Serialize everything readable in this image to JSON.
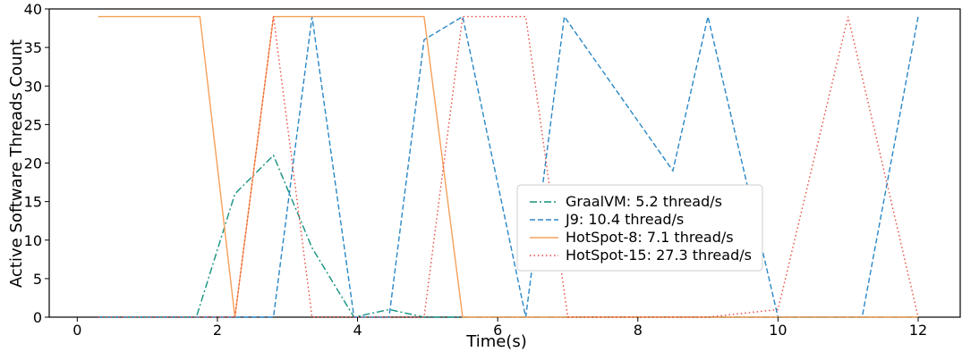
{
  "chart_data": {
    "type": "line",
    "xlabel": "Time(s)",
    "ylabel": "Active Software Threads Count",
    "xlim": [
      -0.4,
      12.6
    ],
    "ylim": [
      0,
      40
    ],
    "xticks": [
      0,
      2,
      4,
      6,
      8,
      10,
      12
    ],
    "yticks": [
      0,
      5,
      10,
      15,
      20,
      25,
      30,
      35,
      40
    ],
    "grid": false,
    "legend_position": "center-right",
    "series": [
      {
        "name": "GraalVM: 5.2 thread/s",
        "color": "#13917f",
        "style": "dashdot",
        "x": [
          0.3,
          1.7,
          2.25,
          2.8,
          3.35,
          3.95,
          4.45,
          4.95,
          5.5,
          6.5,
          7.0,
          8.5,
          9.0,
          10.0,
          11.0,
          12.0
        ],
        "y": [
          0,
          0,
          16,
          21,
          9,
          0,
          1,
          0,
          0,
          0,
          0,
          0,
          0,
          0,
          0,
          0
        ]
      },
      {
        "name": "J9: 10.4 thread/s",
        "color": "#2a87c5",
        "style": "dashed",
        "x": [
          0.3,
          1.7,
          2.25,
          2.8,
          3.35,
          3.95,
          4.45,
          4.95,
          5.5,
          6.4,
          6.95,
          8.5,
          9.0,
          10.0,
          11.2,
          12.0
        ],
        "y": [
          0,
          0,
          0,
          0,
          39,
          0,
          0,
          36,
          39,
          0,
          39,
          19,
          39,
          0,
          0,
          39
        ]
      },
      {
        "name": "HotSpot-8: 7.1 thread/s",
        "color": "#f5a05a",
        "style": "solid",
        "x": [
          0.3,
          1.2,
          1.75,
          2.25,
          2.8,
          3.35,
          3.95,
          4.45,
          4.95,
          5.5,
          6.5,
          7.0,
          8.5,
          10.0,
          11.0,
          12.0
        ],
        "y": [
          39,
          39,
          39,
          0,
          39,
          39,
          39,
          39,
          39,
          0,
          0,
          0,
          0,
          0,
          0,
          0
        ]
      },
      {
        "name": "HotSpot-15: 27.3 thread/s",
        "color": "#e8483e",
        "style": "dotted",
        "x": [
          0.3,
          1.7,
          2.25,
          2.8,
          3.35,
          3.95,
          4.45,
          4.95,
          5.5,
          6.4,
          7.0,
          8.5,
          9.0,
          10.0,
          11.0,
          12.0
        ],
        "y": [
          0,
          0,
          0,
          39,
          0,
          0,
          0,
          0,
          39,
          39,
          0,
          0,
          0,
          1,
          39,
          0
        ]
      }
    ]
  }
}
